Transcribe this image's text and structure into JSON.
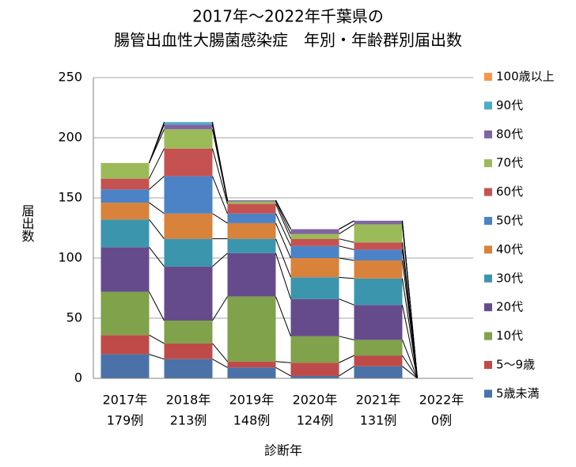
{
  "chart_data": {
    "type": "stacked-bar",
    "title": [
      "2017年～2022年千葉県の",
      "腸管出血性大腸菌感染症　年別・年齢群別届出数"
    ],
    "ylabel": "届出数",
    "xlabel": "診断年",
    "categories": [
      [
        "2017年",
        "179例"
      ],
      [
        "2018年",
        "213例"
      ],
      [
        "2019年",
        "148例"
      ],
      [
        "2020年",
        "124例"
      ],
      [
        "2021年",
        "131例"
      ],
      [
        "2022年",
        "0例"
      ]
    ],
    "series": [
      {
        "name": "5歳未満",
        "color": "#4a72a8",
        "values": [
          20,
          16,
          9,
          2,
          10,
          0
        ]
      },
      {
        "name": "5～9歳",
        "color": "#be4b48",
        "values": [
          16,
          13,
          5,
          11,
          9,
          0
        ]
      },
      {
        "name": "10代",
        "color": "#7fa24a",
        "values": [
          36,
          19,
          54,
          22,
          13,
          0
        ]
      },
      {
        "name": "20代",
        "color": "#664b8c",
        "values": [
          37,
          45,
          36,
          31,
          29,
          0
        ]
      },
      {
        "name": "30代",
        "color": "#3b96ad",
        "values": [
          23,
          23,
          12,
          18,
          22,
          0
        ]
      },
      {
        "name": "40代",
        "color": "#d9823b",
        "values": [
          14,
          21,
          13,
          16,
          15,
          0
        ]
      },
      {
        "name": "50代",
        "color": "#4c82c6",
        "values": [
          11,
          31,
          8,
          10,
          9,
          0
        ]
      },
      {
        "name": "60代",
        "color": "#c65151",
        "values": [
          9,
          23,
          8,
          6,
          6,
          0
        ]
      },
      {
        "name": "70代",
        "color": "#9bbb59",
        "values": [
          13,
          16,
          2,
          4,
          15,
          0
        ]
      },
      {
        "name": "80代",
        "color": "#8064a2",
        "values": [
          0,
          4,
          1,
          4,
          3,
          0
        ]
      },
      {
        "name": "90代",
        "color": "#4bacc6",
        "values": [
          0,
          2,
          0,
          0,
          0,
          0
        ]
      },
      {
        "name": "100歳以上",
        "color": "#f79646",
        "values": [
          0,
          0,
          0,
          0,
          0,
          0
        ]
      }
    ],
    "ylim": [
      0,
      250
    ],
    "yticks": [
      0,
      50,
      100,
      150,
      200,
      250
    ],
    "grid": true,
    "series_lines": true
  }
}
